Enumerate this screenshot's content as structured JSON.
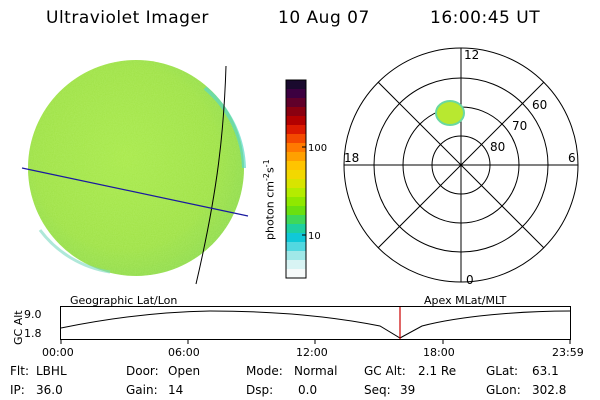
{
  "header": {
    "title": "Ultraviolet Imager",
    "date": "10 Aug 07",
    "time": "16:00:45 UT"
  },
  "colorbar": {
    "label": "photon cm",
    "label_exp1": "-2",
    "label_mid": "s",
    "label_exp2": "-1",
    "tick_top": "100",
    "tick_bottom": "10",
    "colors": [
      "#1a0a2e",
      "#3c0040",
      "#60002a",
      "#8a0010",
      "#b30000",
      "#dc1a00",
      "#f44a00",
      "#ff7a00",
      "#ffa000",
      "#ffc400",
      "#f2d800",
      "#d8e400",
      "#b4ec00",
      "#8fe800",
      "#6ae010",
      "#3ed85a",
      "#1ed0a0",
      "#10c8d8",
      "#52d8e0",
      "#a0e8e8",
      "#d8f4f4",
      "#f6fafa"
    ]
  },
  "polar": {
    "label_12": "12",
    "label_6": "6",
    "label_18": "18",
    "label_0": "0",
    "label_60": "60",
    "label_70": "70",
    "label_80": "80"
  },
  "plot_labels": {
    "left": "Geographic Lat/Lon",
    "right": "Apex MLat/MLT"
  },
  "timeline": {
    "ylabel": "GC Alt",
    "y_top": "9.0",
    "y_bottom": "1.8",
    "x_ticks": [
      "00:00",
      "06:00",
      "12:00",
      "18:00",
      "23:59"
    ],
    "marker_color": "#cc0000"
  },
  "info": {
    "flt_label": "Flt:",
    "flt_value": "LBHL",
    "ip_label": "IP:",
    "ip_value": "36.0",
    "door_label": "Door:",
    "door_value": "Open",
    "gain_label": "Gain:",
    "gain_value": "14",
    "mode_label": "Mode:",
    "mode_value": "Normal",
    "dsp_label": "Dsp:",
    "dsp_value": "0.0",
    "gcalt_label": "GC Alt:",
    "gcalt_value": "2.1 Re",
    "seq_label": "Seq:",
    "seq_value": "39",
    "glat_label": "GLat:",
    "glat_value": "63.1",
    "glon_label": "GLon:",
    "glon_value": "302.8"
  }
}
